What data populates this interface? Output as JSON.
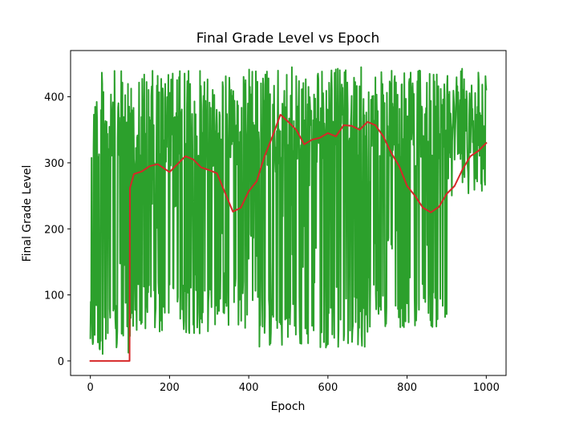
{
  "chart_data": {
    "type": "line",
    "title": "Final Grade Level vs Epoch",
    "xlabel": "Epoch",
    "ylabel": "Final Grade Level",
    "xlim": [
      -50,
      1050
    ],
    "ylim": [
      -22,
      470
    ],
    "x_ticks": [
      0,
      200,
      400,
      600,
      800,
      1000
    ],
    "y_ticks": [
      0,
      100,
      200,
      300,
      400
    ],
    "grid": false,
    "legend": "none",
    "series": [
      {
        "color": "#2ca02c",
        "generator": "noisy",
        "x_range": [
          0,
          1000
        ],
        "segments": [
          {
            "x": [
              0,
              100
            ],
            "high": 440,
            "low": 10
          },
          {
            "x": [
              100,
              300
            ],
            "high": 440,
            "low": 40
          },
          {
            "x": [
              300,
              400
            ],
            "high": 435,
            "low": 50
          },
          {
            "x": [
              400,
              520
            ],
            "high": 445,
            "low": 20
          },
          {
            "x": [
              520,
              700
            ],
            "high": 445,
            "low": 20
          },
          {
            "x": [
              700,
              900
            ],
            "high": 440,
            "low": 50
          },
          {
            "x": [
              900,
              1000
            ],
            "high": 445,
            "low": 240
          }
        ]
      },
      {
        "color": "#d62728",
        "x": [
          0,
          98,
          99,
          100,
          110,
          130,
          150,
          170,
          190,
          200,
          220,
          240,
          260,
          280,
          300,
          320,
          340,
          360,
          380,
          400,
          420,
          440,
          460,
          480,
          500,
          520,
          540,
          560,
          580,
          600,
          620,
          640,
          660,
          680,
          700,
          720,
          740,
          760,
          780,
          800,
          820,
          840,
          860,
          880,
          900,
          920,
          940,
          960,
          980,
          1000
        ],
        "y": [
          0,
          0,
          0,
          262,
          283,
          287,
          295,
          298,
          290,
          286,
          298,
          310,
          305,
          293,
          289,
          284,
          255,
          226,
          232,
          257,
          272,
          310,
          340,
          373,
          362,
          350,
          328,
          335,
          338,
          345,
          340,
          357,
          356,
          350,
          362,
          357,
          340,
          315,
          295,
          265,
          250,
          232,
          225,
          233,
          253,
          265,
          290,
          310,
          318,
          330
        ]
      }
    ]
  }
}
